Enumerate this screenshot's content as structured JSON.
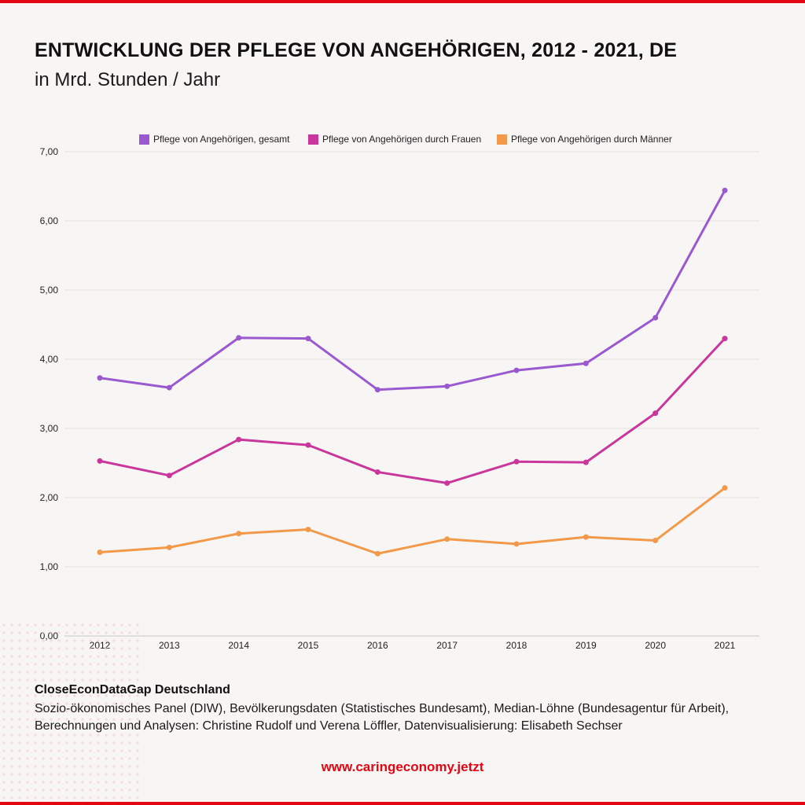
{
  "page": {
    "title": "ENTWICKLUNG DER PFLEGE VON ANGEHÖRIGEN, 2012 - 2021, DE",
    "subtitle": "in Mrd. Stunden / Jahr",
    "source_title": "CloseEconDataGap Deutschland",
    "source_text": "Sozio-ökonomisches Panel (DIW), Bevölkerungsdaten (Statistisches Bundesamt), Median-Löhne (Bundesagentur für Arbeit), Berechnungen und Analysen: Christine Rudolf und Verena Löffler, Datenvisualisierung: Elisabeth Sechser",
    "url": "www.caringeconomy.jetzt",
    "accent_color": "#e30613"
  },
  "chart_data": {
    "type": "line",
    "title": "ENTWICKLUNG DER PFLEGE VON ANGEHÖRIGEN, 2012 - 2021, DE",
    "subtitle": "in Mrd. Stunden / Jahr",
    "xlabel": "",
    "ylabel": "",
    "x": [
      "2012",
      "2013",
      "2014",
      "2015",
      "2016",
      "2017",
      "2018",
      "2019",
      "2020",
      "2021"
    ],
    "ylim": [
      0,
      7
    ],
    "yticks": [
      "0,00",
      "1,00",
      "2,00",
      "3,00",
      "4,00",
      "5,00",
      "6,00",
      "7,00"
    ],
    "grid": true,
    "legend_position": "top",
    "series": [
      {
        "name": "Pflege von Angehörigen, gesamt",
        "color": "#9b59d0",
        "values": [
          3.73,
          3.59,
          4.31,
          4.3,
          3.56,
          3.61,
          3.84,
          3.94,
          4.6,
          6.44
        ]
      },
      {
        "name": "Pflege von Angehörigen durch Frauen",
        "color": "#c9379d",
        "values": [
          2.53,
          2.32,
          2.84,
          2.76,
          2.37,
          2.21,
          2.52,
          2.51,
          3.22,
          4.3
        ]
      },
      {
        "name": "Pflege von Angehörigen durch Männer",
        "color": "#f2994a",
        "values": [
          1.21,
          1.28,
          1.48,
          1.54,
          1.19,
          1.4,
          1.33,
          1.43,
          1.38,
          2.14
        ]
      }
    ]
  }
}
